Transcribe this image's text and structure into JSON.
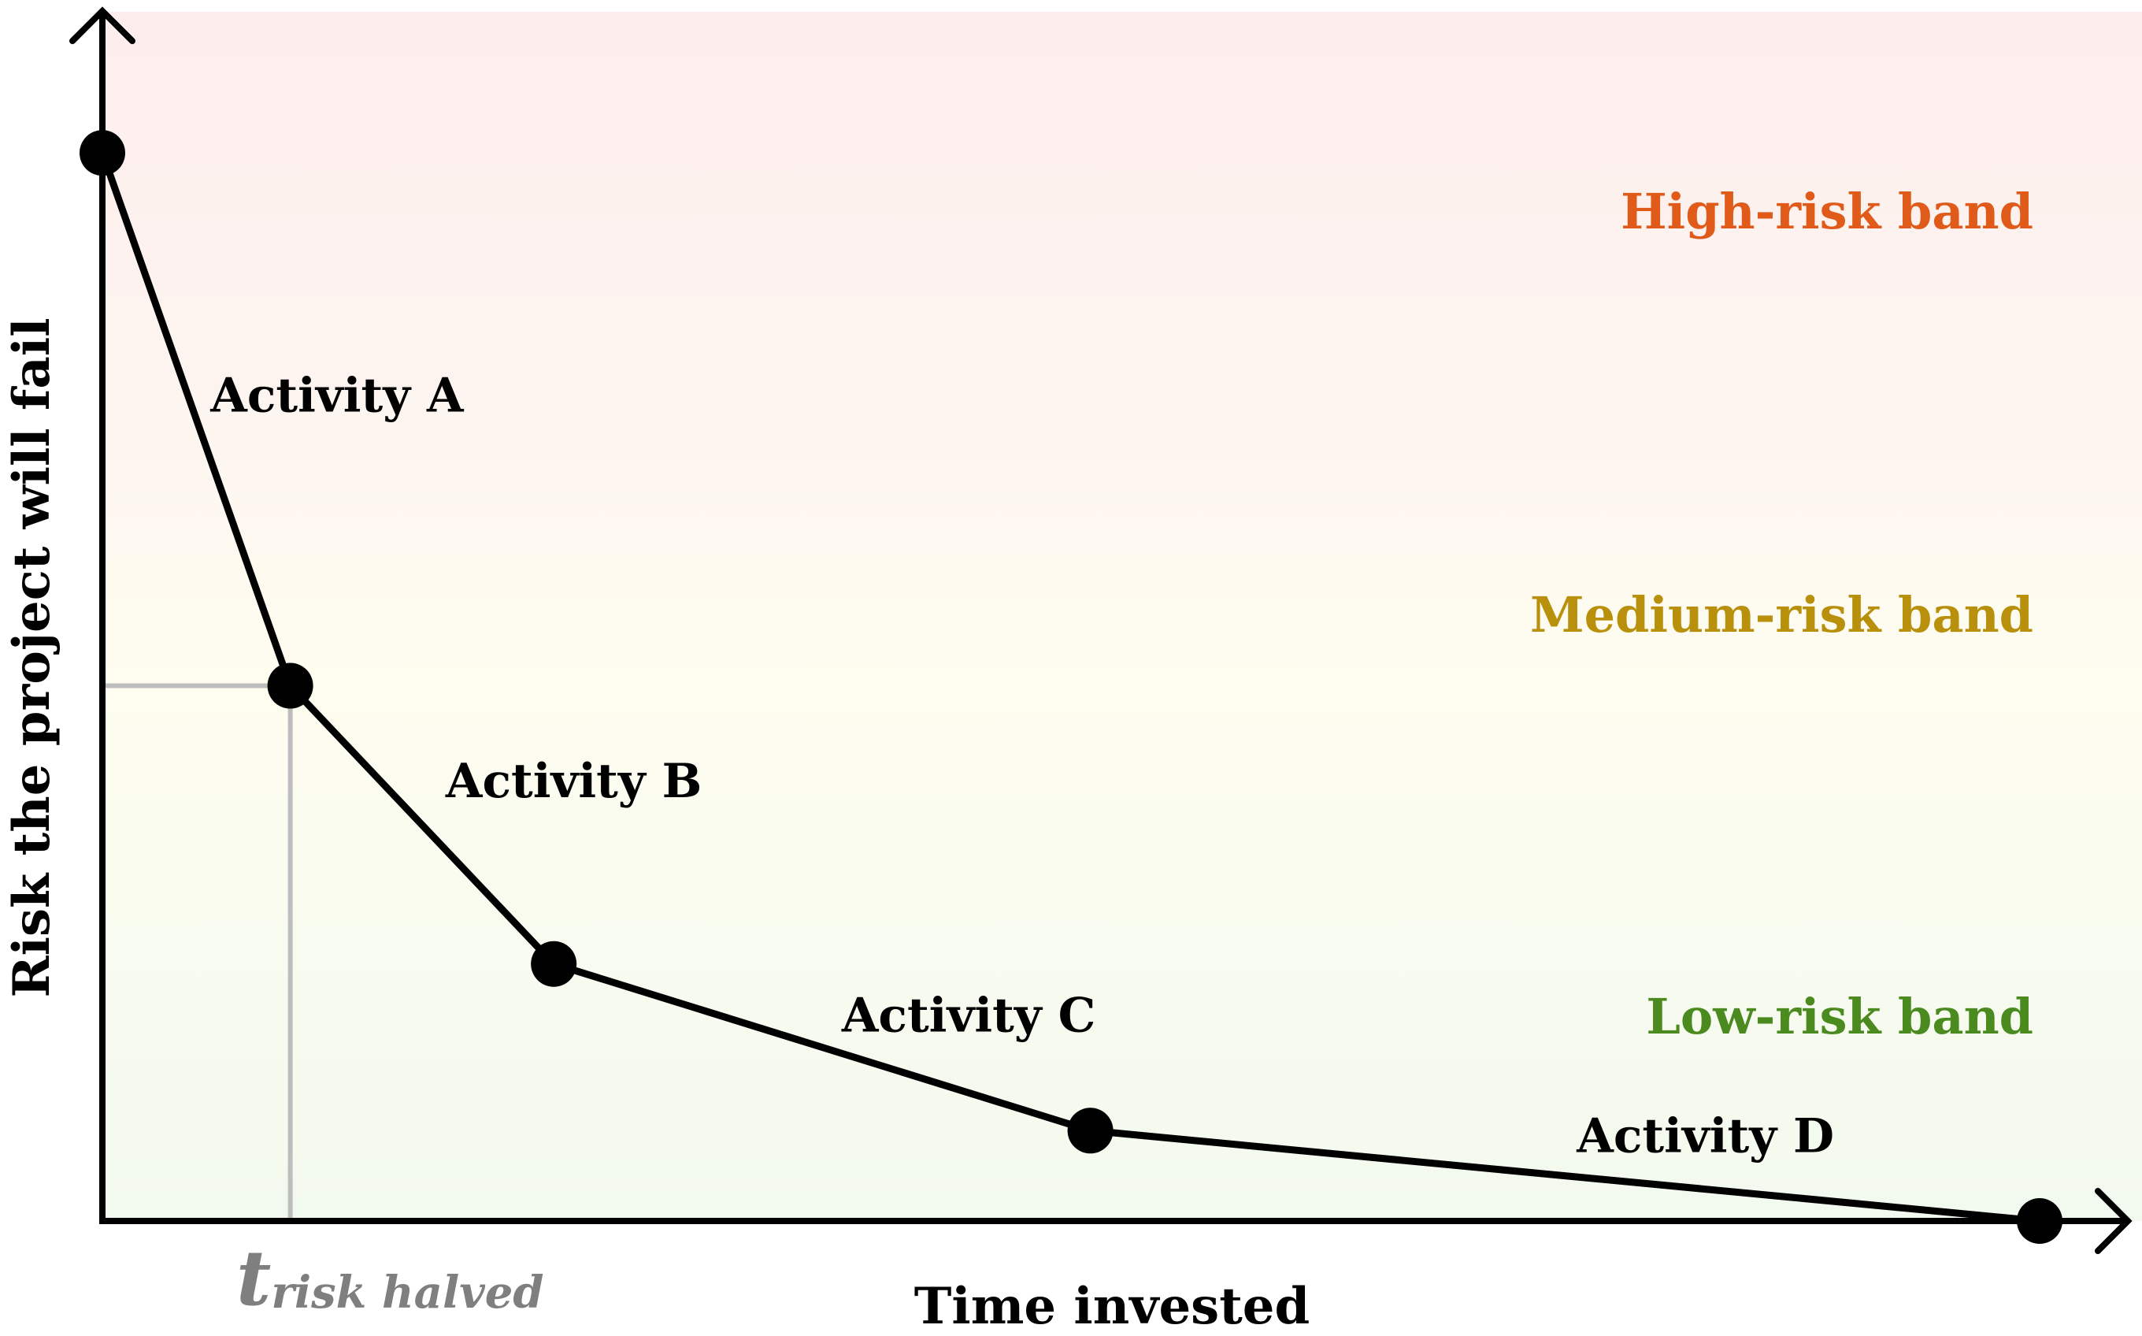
{
  "chart_data": {
    "type": "line",
    "xlabel": "Time invested",
    "ylabel": "Risk the project will fail",
    "xlim": [
      0,
      10
    ],
    "ylim": [
      0,
      10
    ],
    "points": [
      {
        "x": 0.0,
        "y": 9.1
      },
      {
        "x": 0.97,
        "y": 4.56
      },
      {
        "x": 2.33,
        "y": 2.19
      },
      {
        "x": 5.1,
        "y": 0.77
      },
      {
        "x": 10.0,
        "y": 0.0
      }
    ],
    "segments": [
      {
        "label": "Activity A"
      },
      {
        "label": "Activity B"
      },
      {
        "label": "Activity C"
      },
      {
        "label": "Activity D"
      }
    ],
    "bands": [
      {
        "label": "High-risk band",
        "color": "#e05a1a",
        "fill": "#fdeeee"
      },
      {
        "label": "Medium-risk band",
        "color": "#b8900c",
        "fill": "#fefdf0"
      },
      {
        "label": "Low-risk band",
        "color": "#4a8a1e",
        "fill": "#f2f9ee"
      }
    ],
    "guide": {
      "x": 0.97,
      "y": 4.56,
      "label_main": "t",
      "label_sub": "risk halved",
      "color": "#bdbdbd"
    }
  }
}
